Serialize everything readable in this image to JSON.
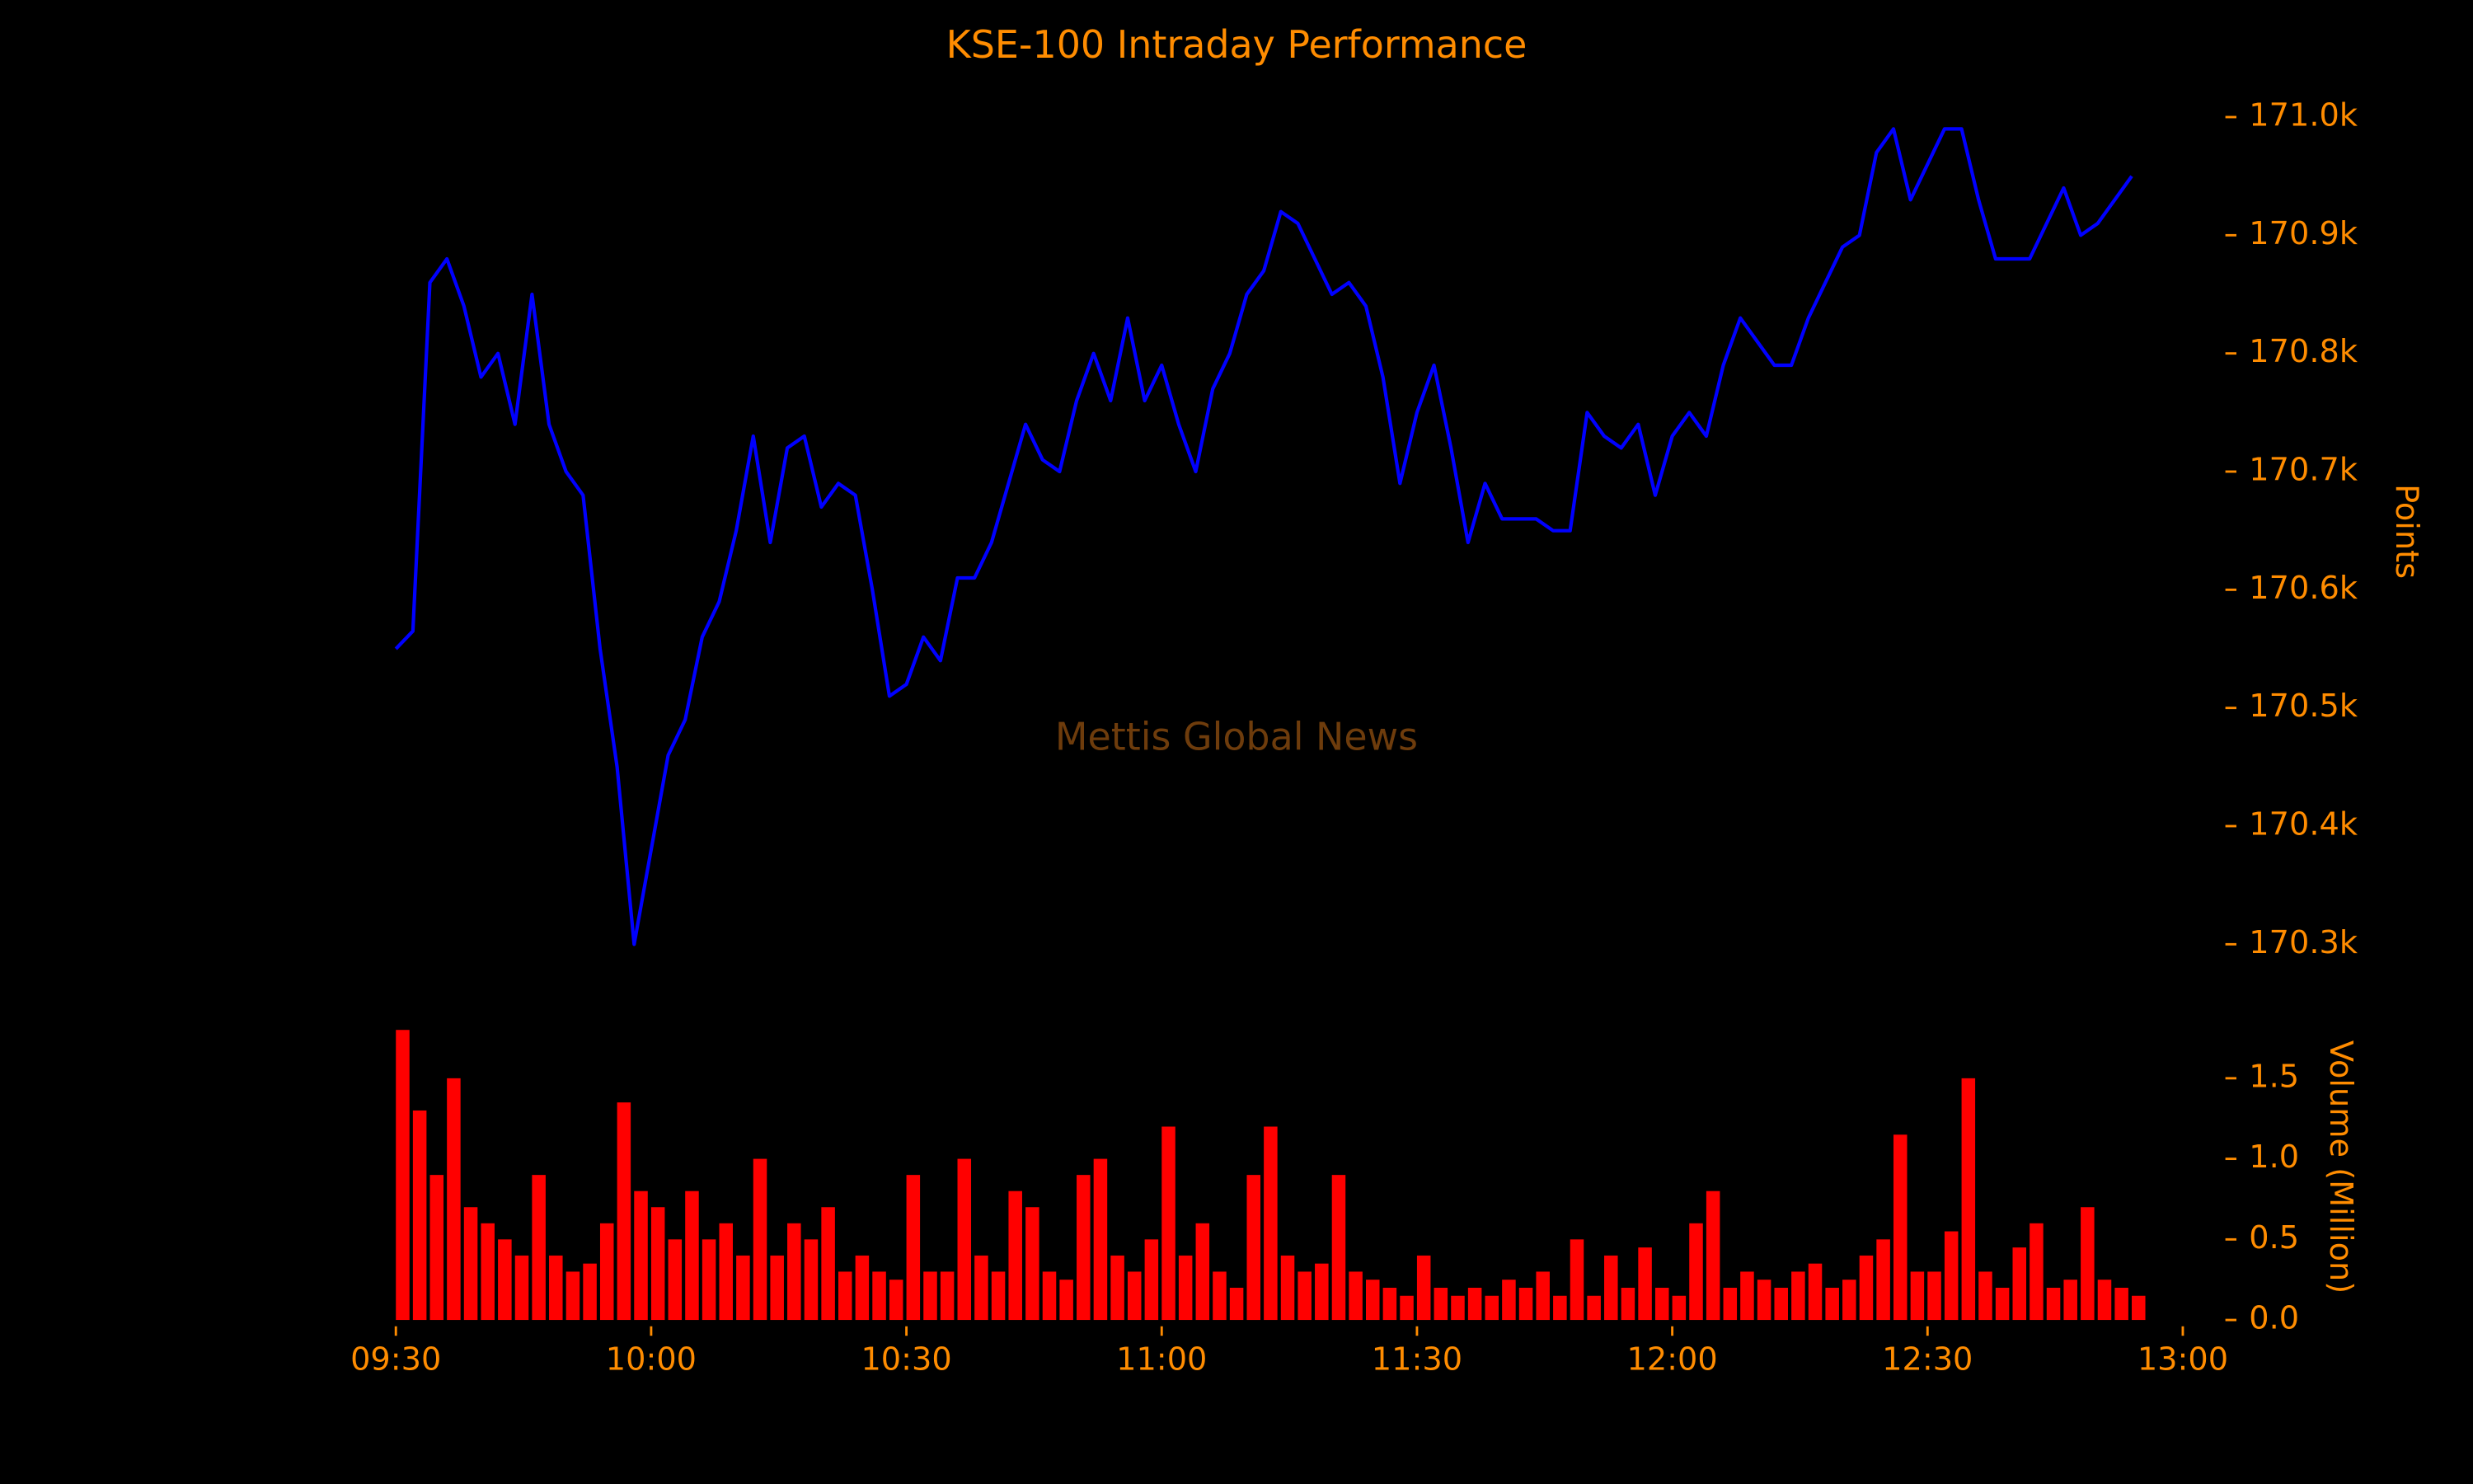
{
  "chart_data": [
    {
      "type": "line",
      "title": "KSE-100 Intraday Performance",
      "annotation": "Mettis Global News",
      "ylabel": "Points",
      "color": "#0000ff",
      "xlim": [
        "09:30",
        "13:00"
      ],
      "ylim": [
        170285,
        171019
      ],
      "yticks": [
        {
          "value": 170300,
          "label": "170.3k"
        },
        {
          "value": 170400,
          "label": "170.4k"
        },
        {
          "value": 170500,
          "label": "170.5k"
        },
        {
          "value": 170600,
          "label": "170.6k"
        },
        {
          "value": 170700,
          "label": "170.7k"
        },
        {
          "value": 170800,
          "label": "170.8k"
        },
        {
          "value": 170900,
          "label": "170.9k"
        },
        {
          "value": 171000,
          "label": "171.0k"
        }
      ],
      "x": [
        "09:30",
        "09:32",
        "09:34",
        "09:36",
        "09:38",
        "09:40",
        "09:42",
        "09:44",
        "09:46",
        "09:48",
        "09:50",
        "09:52",
        "09:54",
        "09:56",
        "09:58",
        "10:00",
        "10:02",
        "10:04",
        "10:06",
        "10:08",
        "10:10",
        "10:12",
        "10:14",
        "10:16",
        "10:18",
        "10:20",
        "10:22",
        "10:24",
        "10:26",
        "10:28",
        "10:30",
        "10:32",
        "10:34",
        "10:36",
        "10:38",
        "10:40",
        "10:42",
        "10:44",
        "10:46",
        "10:48",
        "10:50",
        "10:52",
        "10:54",
        "10:56",
        "10:58",
        "11:00",
        "11:02",
        "11:04",
        "11:06",
        "11:08",
        "11:10",
        "11:12",
        "11:14",
        "11:16",
        "11:18",
        "11:20",
        "11:22",
        "11:24",
        "11:26",
        "11:28",
        "11:30",
        "11:32",
        "11:34",
        "11:36",
        "11:38",
        "11:40",
        "11:42",
        "11:44",
        "11:46",
        "11:48",
        "11:50",
        "11:52",
        "11:54",
        "11:56",
        "11:58",
        "12:00",
        "12:02",
        "12:04",
        "12:06",
        "12:08",
        "12:10",
        "12:12",
        "12:14",
        "12:16",
        "12:18",
        "12:20",
        "12:22",
        "12:24",
        "12:26",
        "12:28",
        "12:30",
        "12:32",
        "12:34",
        "12:36",
        "12:38",
        "12:40",
        "12:42",
        "12:44",
        "12:46",
        "12:48",
        "12:50",
        "12:52",
        "12:54"
      ],
      "values": [
        170550,
        170565,
        170860,
        170880,
        170840,
        170780,
        170800,
        170740,
        170850,
        170740,
        170700,
        170680,
        170550,
        170450,
        170300,
        170380,
        170460,
        170490,
        170560,
        170590,
        170650,
        170730,
        170640,
        170720,
        170730,
        170670,
        170690,
        170680,
        170600,
        170510,
        170520,
        170560,
        170540,
        170610,
        170610,
        170640,
        170690,
        170740,
        170710,
        170700,
        170760,
        170800,
        170760,
        170830,
        170760,
        170790,
        170740,
        170700,
        170770,
        170800,
        170850,
        170870,
        170920,
        170910,
        170880,
        170850,
        170860,
        170840,
        170780,
        170690,
        170750,
        170790,
        170720,
        170640,
        170690,
        170660,
        170660,
        170660,
        170650,
        170650,
        170750,
        170730,
        170720,
        170740,
        170680,
        170730,
        170750,
        170730,
        170790,
        170830,
        170810,
        170790,
        170790,
        170830,
        170860,
        170890,
        170900,
        170970,
        170990,
        170930,
        170960,
        170990,
        170990,
        170930,
        170880,
        170880,
        170880,
        170910,
        170940,
        170900,
        170910,
        170930,
        170950
      ]
    },
    {
      "type": "bar",
      "ylabel": "Volume (Million)",
      "color": "#ff0000",
      "xlim": [
        "09:30",
        "13:00"
      ],
      "xticks": [
        "09:30",
        "10:00",
        "10:30",
        "11:00",
        "11:30",
        "12:00",
        "12:30",
        "13:00"
      ],
      "ylim": [
        0,
        1.83
      ],
      "yticks": [
        {
          "value": 0,
          "label": "0.0"
        },
        0.5,
        {
          "value": 1,
          "label": "1.0"
        },
        1.5
      ],
      "x": [
        "09:30",
        "09:32",
        "09:34",
        "09:36",
        "09:38",
        "09:40",
        "09:42",
        "09:44",
        "09:46",
        "09:48",
        "09:50",
        "09:52",
        "09:54",
        "09:56",
        "09:58",
        "10:00",
        "10:02",
        "10:04",
        "10:06",
        "10:08",
        "10:10",
        "10:12",
        "10:14",
        "10:16",
        "10:18",
        "10:20",
        "10:22",
        "10:24",
        "10:26",
        "10:28",
        "10:30",
        "10:32",
        "10:34",
        "10:36",
        "10:38",
        "10:40",
        "10:42",
        "10:44",
        "10:46",
        "10:48",
        "10:50",
        "10:52",
        "10:54",
        "10:56",
        "10:58",
        "11:00",
        "11:02",
        "11:04",
        "11:06",
        "11:08",
        "11:10",
        "11:12",
        "11:14",
        "11:16",
        "11:18",
        "11:20",
        "11:22",
        "11:24",
        "11:26",
        "11:28",
        "11:30",
        "11:32",
        "11:34",
        "11:36",
        "11:38",
        "11:40",
        "11:42",
        "11:44",
        "11:46",
        "11:48",
        "11:50",
        "11:52",
        "11:54",
        "11:56",
        "11:58",
        "12:00",
        "12:02",
        "12:04",
        "12:06",
        "12:08",
        "12:10",
        "12:12",
        "12:14",
        "12:16",
        "12:18",
        "12:20",
        "12:22",
        "12:24",
        "12:26",
        "12:28",
        "12:30",
        "12:32",
        "12:34",
        "12:36",
        "12:38",
        "12:40",
        "12:42",
        "12:44",
        "12:46",
        "12:48",
        "12:50",
        "12:52",
        "12:54"
      ],
      "values": [
        1.8,
        1.3,
        0.9,
        1.5,
        0.7,
        0.6,
        0.5,
        0.4,
        0.9,
        0.4,
        0.3,
        0.35,
        0.6,
        1.35,
        0.8,
        0.7,
        0.5,
        0.8,
        0.5,
        0.6,
        0.4,
        1.0,
        0.4,
        0.6,
        0.5,
        0.7,
        0.3,
        0.4,
        0.3,
        0.25,
        0.9,
        0.3,
        0.3,
        1.0,
        0.4,
        0.3,
        0.8,
        0.7,
        0.3,
        0.25,
        0.9,
        1.0,
        0.4,
        0.3,
        0.5,
        1.2,
        0.4,
        0.6,
        0.3,
        0.2,
        0.9,
        1.2,
        0.4,
        0.3,
        0.35,
        0.9,
        0.3,
        0.25,
        0.2,
        0.15,
        0.4,
        0.2,
        0.15,
        0.2,
        0.15,
        0.25,
        0.2,
        0.3,
        0.15,
        0.5,
        0.15,
        0.4,
        0.2,
        0.45,
        0.2,
        0.15,
        0.6,
        0.8,
        0.2,
        0.3,
        0.25,
        0.2,
        0.3,
        0.35,
        0.2,
        0.25,
        0.4,
        0.5,
        1.15,
        0.3,
        0.3,
        0.55,
        1.5,
        0.3,
        0.2,
        0.45,
        0.6,
        0.2,
        0.25,
        0.7,
        0.25,
        0.2,
        0.15
      ]
    }
  ]
}
